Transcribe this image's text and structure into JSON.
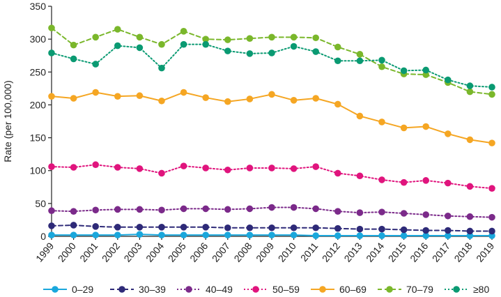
{
  "chart_data": {
    "type": "line",
    "title": "",
    "xlabel": "",
    "ylabel": "Rate (per 100,000)",
    "ylim": [
      0,
      350
    ],
    "yticks": [
      0,
      50,
      100,
      150,
      200,
      250,
      300,
      350
    ],
    "grid": false,
    "legend_position": "bottom",
    "x": [
      "1999",
      "2000",
      "2001",
      "2002",
      "2003",
      "2004",
      "2005",
      "2006",
      "2007",
      "2008",
      "2009",
      "2010",
      "2011",
      "2012",
      "2013",
      "2014",
      "2015",
      "2016",
      "2017",
      "2018",
      "2019"
    ],
    "series": [
      {
        "name": "0–29",
        "color": "#1aa7dc",
        "dash": "solid",
        "values": [
          2,
          2,
          2,
          2,
          3,
          2,
          2,
          2,
          2,
          2,
          2,
          2,
          1,
          1,
          1,
          1,
          1,
          1,
          1,
          1,
          1
        ]
      },
      {
        "name": "30–39",
        "color": "#2e2a78",
        "dash": "dashed",
        "values": [
          16,
          17,
          15,
          14,
          14,
          14,
          14,
          14,
          13,
          13,
          13,
          13,
          13,
          12,
          11,
          11,
          10,
          9,
          9,
          8,
          8
        ]
      },
      {
        "name": "40–49",
        "color": "#7b2a8a",
        "dash": "dotted",
        "values": [
          39,
          38,
          40,
          41,
          41,
          40,
          42,
          42,
          41,
          42,
          44,
          44,
          42,
          38,
          36,
          37,
          35,
          33,
          31,
          30,
          29
        ]
      },
      {
        "name": "50–59",
        "color": "#e0147d",
        "dash": "dotted",
        "values": [
          106,
          105,
          109,
          105,
          103,
          96,
          107,
          104,
          101,
          104,
          104,
          103,
          106,
          96,
          92,
          86,
          82,
          85,
          81,
          76,
          73
        ]
      },
      {
        "name": "60–69",
        "color": "#f5a623",
        "dash": "solid",
        "values": [
          213,
          210,
          219,
          213,
          214,
          206,
          219,
          211,
          205,
          209,
          216,
          207,
          210,
          201,
          183,
          174,
          165,
          167,
          156,
          147,
          142
        ]
      },
      {
        "name": "70–79",
        "color": "#7ab72b",
        "dash": "dashed",
        "values": [
          317,
          291,
          303,
          315,
          303,
          292,
          312,
          300,
          299,
          301,
          303,
          303,
          302,
          288,
          277,
          258,
          247,
          246,
          234,
          220,
          216
        ]
      },
      {
        "name": "≥80",
        "color": "#0a9a72",
        "dash": "dotted",
        "values": [
          279,
          270,
          262,
          290,
          287,
          256,
          292,
          292,
          282,
          278,
          279,
          289,
          281,
          267,
          267,
          268,
          252,
          253,
          238,
          229,
          227
        ]
      }
    ]
  }
}
